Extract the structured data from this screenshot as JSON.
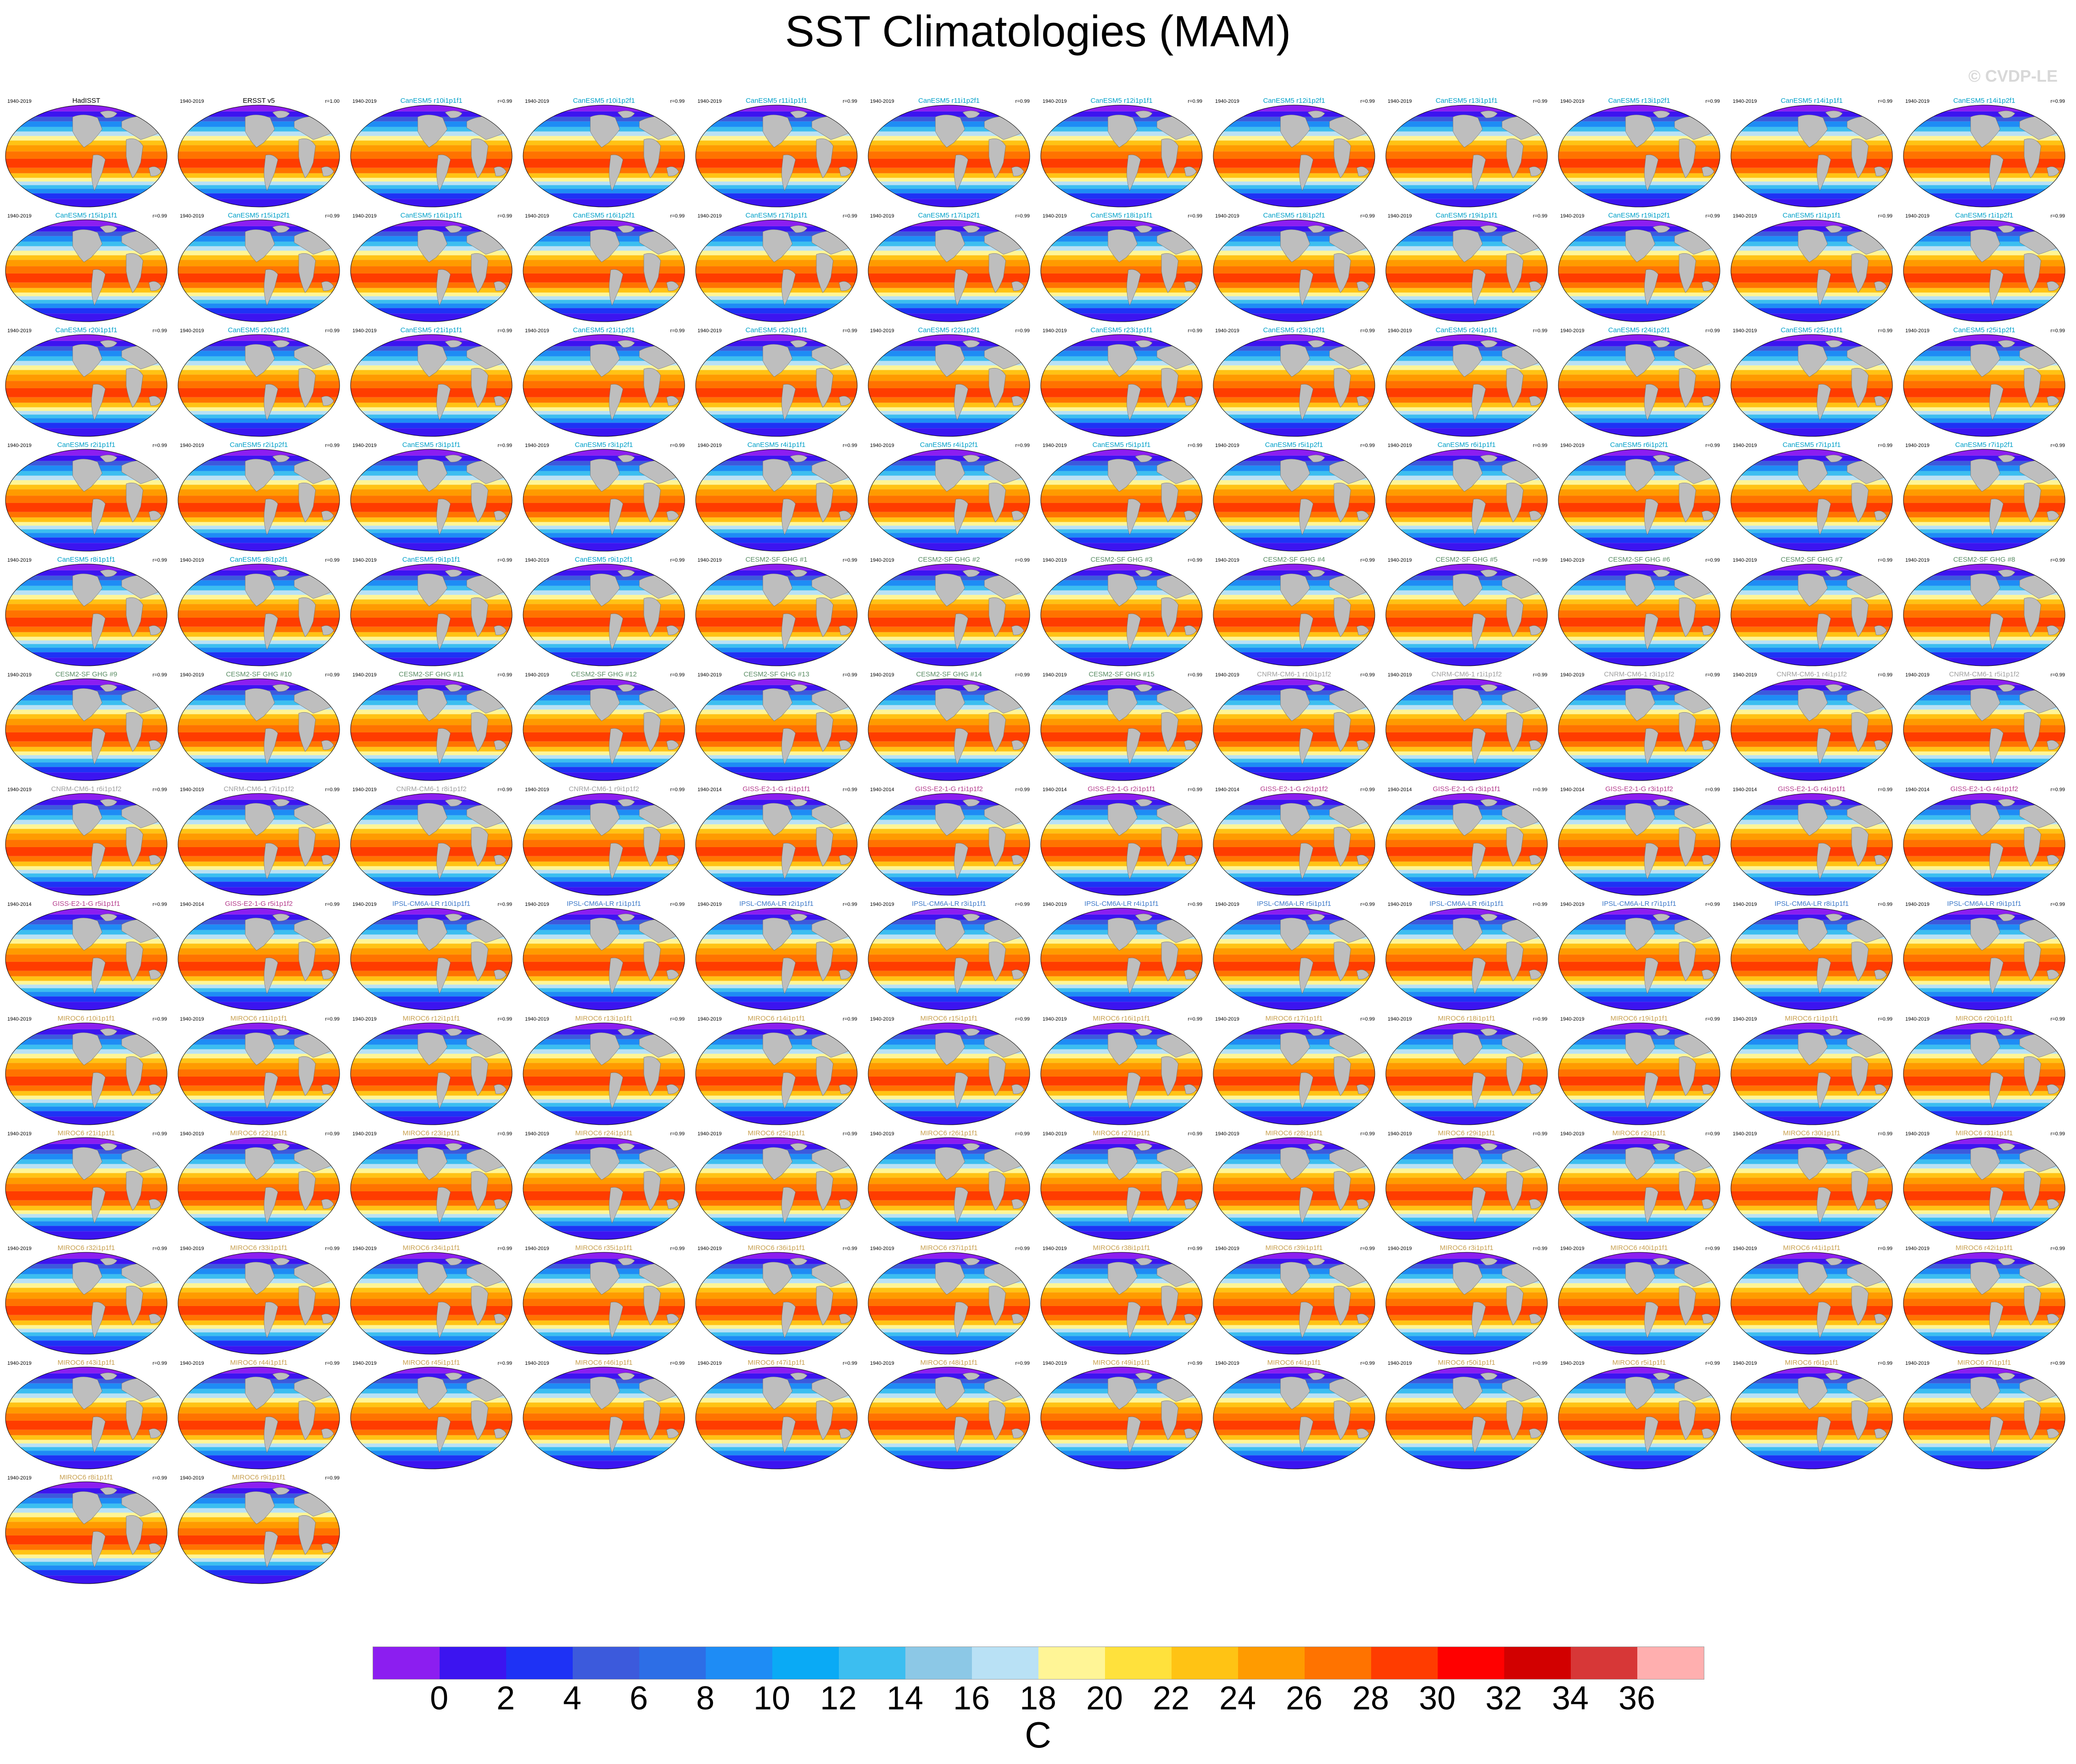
{
  "title": "SST Climatologies (MAM)",
  "copyright": "© CVDP-LE",
  "colorbar": {
    "units": "C",
    "ticks": [
      "0",
      "2",
      "4",
      "6",
      "8",
      "10",
      "12",
      "14",
      "16",
      "18",
      "20",
      "22",
      "24",
      "26",
      "28",
      "30",
      "32",
      "34",
      "36"
    ],
    "colors": [
      "#8c1ef0",
      "#3c14f0",
      "#1e32f5",
      "#3c5adc",
      "#2d6ee6",
      "#1e8cf5",
      "#0aaaf5",
      "#3cbef0",
      "#8cc8e6",
      "#b9e1f5",
      "#fff596",
      "#ffe13c",
      "#ffc314",
      "#ff9b00",
      "#ff7300",
      "#ff3c00",
      "#ff0000",
      "#d20000",
      "#d73737",
      "#ffafaf"
    ]
  },
  "panels": [
    {
      "name": "HadISST",
      "color": "#000000",
      "period": "1940-2019",
      "r": ""
    },
    {
      "name": "ERSST v5",
      "color": "#000000",
      "period": "1940-2019",
      "r": "r=1.00"
    },
    {
      "name": "CanESM5 r10i1p1f1",
      "color": "#00a0c8",
      "period": "1940-2019",
      "r": "r=0.99"
    },
    {
      "name": "CanESM5 r10i1p2f1",
      "color": "#00a0c8",
      "period": "1940-2019",
      "r": "r=0.99"
    },
    {
      "name": "CanESM5 r11i1p1f1",
      "color": "#00a0c8",
      "period": "1940-2019",
      "r": "r=0.99"
    },
    {
      "name": "CanESM5 r11i1p2f1",
      "color": "#00a0c8",
      "period": "1940-2019",
      "r": "r=0.99"
    },
    {
      "name": "CanESM5 r12i1p1f1",
      "color": "#00a0c8",
      "period": "1940-2019",
      "r": "r=0.99"
    },
    {
      "name": "CanESM5 r12i1p2f1",
      "color": "#00a0c8",
      "period": "1940-2019",
      "r": "r=0.99"
    },
    {
      "name": "CanESM5 r13i1p1f1",
      "color": "#00a0c8",
      "period": "1940-2019",
      "r": "r=0.99"
    },
    {
      "name": "CanESM5 r13i1p2f1",
      "color": "#00a0c8",
      "period": "1940-2019",
      "r": "r=0.99"
    },
    {
      "name": "CanESM5 r14i1p1f1",
      "color": "#00a0c8",
      "period": "1940-2019",
      "r": "r=0.99"
    },
    {
      "name": "CanESM5 r14i1p2f1",
      "color": "#00a0c8",
      "period": "1940-2019",
      "r": "r=0.99"
    },
    {
      "name": "CanESM5 r15i1p1f1",
      "color": "#00a0c8",
      "period": "1940-2019",
      "r": "r=0.99"
    },
    {
      "name": "CanESM5 r15i1p2f1",
      "color": "#00a0c8",
      "period": "1940-2019",
      "r": "r=0.99"
    },
    {
      "name": "CanESM5 r16i1p1f1",
      "color": "#00a0c8",
      "period": "1940-2019",
      "r": "r=0.99"
    },
    {
      "name": "CanESM5 r16i1p2f1",
      "color": "#00a0c8",
      "period": "1940-2019",
      "r": "r=0.99"
    },
    {
      "name": "CanESM5 r17i1p1f1",
      "color": "#00a0c8",
      "period": "1940-2019",
      "r": "r=0.99"
    },
    {
      "name": "CanESM5 r17i1p2f1",
      "color": "#00a0c8",
      "period": "1940-2019",
      "r": "r=0.99"
    },
    {
      "name": "CanESM5 r18i1p1f1",
      "color": "#00a0c8",
      "period": "1940-2019",
      "r": "r=0.99"
    },
    {
      "name": "CanESM5 r18i1p2f1",
      "color": "#00a0c8",
      "period": "1940-2019",
      "r": "r=0.99"
    },
    {
      "name": "CanESM5 r19i1p1f1",
      "color": "#00a0c8",
      "period": "1940-2019",
      "r": "r=0.99"
    },
    {
      "name": "CanESM5 r19i1p2f1",
      "color": "#00a0c8",
      "period": "1940-2019",
      "r": "r=0.99"
    },
    {
      "name": "CanESM5 r1i1p1f1",
      "color": "#00a0c8",
      "period": "1940-2019",
      "r": "r=0.99"
    },
    {
      "name": "CanESM5 r1i1p2f1",
      "color": "#00a0c8",
      "period": "1940-2019",
      "r": "r=0.99"
    },
    {
      "name": "CanESM5 r20i1p1f1",
      "color": "#00a0c8",
      "period": "1940-2019",
      "r": "r=0.99"
    },
    {
      "name": "CanESM5 r20i1p2f1",
      "color": "#00a0c8",
      "period": "1940-2019",
      "r": "r=0.99"
    },
    {
      "name": "CanESM5 r21i1p1f1",
      "color": "#00a0c8",
      "period": "1940-2019",
      "r": "r=0.99"
    },
    {
      "name": "CanESM5 r21i1p2f1",
      "color": "#00a0c8",
      "period": "1940-2019",
      "r": "r=0.99"
    },
    {
      "name": "CanESM5 r22i1p1f1",
      "color": "#00a0c8",
      "period": "1940-2019",
      "r": "r=0.99"
    },
    {
      "name": "CanESM5 r22i1p2f1",
      "color": "#00a0c8",
      "period": "1940-2019",
      "r": "r=0.99"
    },
    {
      "name": "CanESM5 r23i1p1f1",
      "color": "#00a0c8",
      "period": "1940-2019",
      "r": "r=0.99"
    },
    {
      "name": "CanESM5 r23i1p2f1",
      "color": "#00a0c8",
      "period": "1940-2019",
      "r": "r=0.99"
    },
    {
      "name": "CanESM5 r24i1p1f1",
      "color": "#00a0c8",
      "period": "1940-2019",
      "r": "r=0.99"
    },
    {
      "name": "CanESM5 r24i1p2f1",
      "color": "#00a0c8",
      "period": "1940-2019",
      "r": "r=0.99"
    },
    {
      "name": "CanESM5 r25i1p1f1",
      "color": "#00a0c8",
      "period": "1940-2019",
      "r": "r=0.99"
    },
    {
      "name": "CanESM5 r25i1p2f1",
      "color": "#00a0c8",
      "period": "1940-2019",
      "r": "r=0.99"
    },
    {
      "name": "CanESM5 r2i1p1f1",
      "color": "#00a0c8",
      "period": "1940-2019",
      "r": "r=0.99"
    },
    {
      "name": "CanESM5 r2i1p2f1",
      "color": "#00a0c8",
      "period": "1940-2019",
      "r": "r=0.99"
    },
    {
      "name": "CanESM5 r3i1p1f1",
      "color": "#00a0c8",
      "period": "1940-2019",
      "r": "r=0.99"
    },
    {
      "name": "CanESM5 r3i1p2f1",
      "color": "#00a0c8",
      "period": "1940-2019",
      "r": "r=0.99"
    },
    {
      "name": "CanESM5 r4i1p1f1",
      "color": "#00a0c8",
      "period": "1940-2019",
      "r": "r=0.99"
    },
    {
      "name": "CanESM5 r4i1p2f1",
      "color": "#00a0c8",
      "period": "1940-2019",
      "r": "r=0.99"
    },
    {
      "name": "CanESM5 r5i1p1f1",
      "color": "#00a0c8",
      "period": "1940-2019",
      "r": "r=0.99"
    },
    {
      "name": "CanESM5 r5i1p2f1",
      "color": "#00a0c8",
      "period": "1940-2019",
      "r": "r=0.99"
    },
    {
      "name": "CanESM5 r6i1p1f1",
      "color": "#00a0c8",
      "period": "1940-2019",
      "r": "r=0.99"
    },
    {
      "name": "CanESM5 r6i1p2f1",
      "color": "#00a0c8",
      "period": "1940-2019",
      "r": "r=0.99"
    },
    {
      "name": "CanESM5 r7i1p1f1",
      "color": "#00a0c8",
      "period": "1940-2019",
      "r": "r=0.99"
    },
    {
      "name": "CanESM5 r7i1p2f1",
      "color": "#00a0c8",
      "period": "1940-2019",
      "r": "r=0.99"
    },
    {
      "name": "CanESM5 r8i1p1f1",
      "color": "#00a0c8",
      "period": "1940-2019",
      "r": "r=0.99"
    },
    {
      "name": "CanESM5 r8i1p2f1",
      "color": "#00a0c8",
      "period": "1940-2019",
      "r": "r=0.99"
    },
    {
      "name": "CanESM5 r9i1p1f1",
      "color": "#00a0c8",
      "period": "1940-2019",
      "r": "r=0.99"
    },
    {
      "name": "CanESM5 r9i1p2f1",
      "color": "#00a0c8",
      "period": "1940-2019",
      "r": "r=0.99"
    },
    {
      "name": "CESM2-SF GHG #1",
      "color": "#5a8c64",
      "period": "1940-2019",
      "r": "r=0.99"
    },
    {
      "name": "CESM2-SF GHG #2",
      "color": "#5a8c64",
      "period": "1940-2019",
      "r": "r=0.99"
    },
    {
      "name": "CESM2-SF GHG #3",
      "color": "#5a8c64",
      "period": "1940-2019",
      "r": "r=0.99"
    },
    {
      "name": "CESM2-SF GHG #4",
      "color": "#5a8c64",
      "period": "1940-2019",
      "r": "r=0.99"
    },
    {
      "name": "CESM2-SF GHG #5",
      "color": "#5a8c64",
      "period": "1940-2019",
      "r": "r=0.99"
    },
    {
      "name": "CESM2-SF GHG #6",
      "color": "#5a8c64",
      "period": "1940-2019",
      "r": "r=0.99"
    },
    {
      "name": "CESM2-SF GHG #7",
      "color": "#5a8c64",
      "period": "1940-2019",
      "r": "r=0.99"
    },
    {
      "name": "CESM2-SF GHG #8",
      "color": "#5a8c64",
      "period": "1940-2019",
      "r": "r=0.99"
    },
    {
      "name": "CESM2-SF GHG #9",
      "color": "#5a8c64",
      "period": "1940-2019",
      "r": "r=0.99"
    },
    {
      "name": "CESM2-SF GHG #10",
      "color": "#5a8c64",
      "period": "1940-2019",
      "r": "r=0.99"
    },
    {
      "name": "CESM2-SF GHG #11",
      "color": "#5a8c64",
      "period": "1940-2019",
      "r": "r=0.99"
    },
    {
      "name": "CESM2-SF GHG #12",
      "color": "#5a8c64",
      "period": "1940-2019",
      "r": "r=0.99"
    },
    {
      "name": "CESM2-SF GHG #13",
      "color": "#5a8c64",
      "period": "1940-2019",
      "r": "r=0.99"
    },
    {
      "name": "CESM2-SF GHG #14",
      "color": "#5a8c64",
      "period": "1940-2019",
      "r": "r=0.99"
    },
    {
      "name": "CESM2-SF GHG #15",
      "color": "#5a8c64",
      "period": "1940-2019",
      "r": "r=0.99"
    },
    {
      "name": "CNRM-CM6-1 r10i1p1f2",
      "color": "#a0a0a0",
      "period": "1940-2019",
      "r": "r=0.99"
    },
    {
      "name": "CNRM-CM6-1 r1i1p1f2",
      "color": "#a0a0a0",
      "period": "1940-2019",
      "r": "r=0.99"
    },
    {
      "name": "CNRM-CM6-1 r3i1p1f2",
      "color": "#a0a0a0",
      "period": "1940-2019",
      "r": "r=0.99"
    },
    {
      "name": "CNRM-CM6-1 r4i1p1f2",
      "color": "#a0a0a0",
      "period": "1940-2019",
      "r": "r=0.99"
    },
    {
      "name": "CNRM-CM6-1 r5i1p1f2",
      "color": "#a0a0a0",
      "period": "1940-2019",
      "r": "r=0.99"
    },
    {
      "name": "CNRM-CM6-1 r6i1p1f2",
      "color": "#a0a0a0",
      "period": "1940-2019",
      "r": "r=0.99"
    },
    {
      "name": "CNRM-CM6-1 r7i1p1f2",
      "color": "#a0a0a0",
      "period": "1940-2019",
      "r": "r=0.99"
    },
    {
      "name": "CNRM-CM6-1 r8i1p1f2",
      "color": "#a0a0a0",
      "period": "1940-2019",
      "r": "r=0.99"
    },
    {
      "name": "CNRM-CM6-1 r9i1p1f2",
      "color": "#a0a0a0",
      "period": "1940-2019",
      "r": "r=0.99"
    },
    {
      "name": "GISS-E2-1-G r1i1p1f1",
      "color": "#b43c8c",
      "period": "1940-2014",
      "r": "r=0.99"
    },
    {
      "name": "GISS-E2-1-G r1i1p1f2",
      "color": "#b43c8c",
      "period": "1940-2014",
      "r": "r=0.99"
    },
    {
      "name": "GISS-E2-1-G r2i1p1f1",
      "color": "#b43c8c",
      "period": "1940-2014",
      "r": "r=0.99"
    },
    {
      "name": "GISS-E2-1-G r2i1p1f2",
      "color": "#b43c8c",
      "period": "1940-2014",
      "r": "r=0.99"
    },
    {
      "name": "GISS-E2-1-G r3i1p1f1",
      "color": "#b43c8c",
      "period": "1940-2014",
      "r": "r=0.99"
    },
    {
      "name": "GISS-E2-1-G r3i1p1f2",
      "color": "#b43c8c",
      "period": "1940-2014",
      "r": "r=0.99"
    },
    {
      "name": "GISS-E2-1-G r4i1p1f1",
      "color": "#b43c8c",
      "period": "1940-2014",
      "r": "r=0.99"
    },
    {
      "name": "GISS-E2-1-G r4i1p1f2",
      "color": "#b43c8c",
      "period": "1940-2014",
      "r": "r=0.99"
    },
    {
      "name": "GISS-E2-1-G r5i1p1f1",
      "color": "#b43c8c",
      "period": "1940-2014",
      "r": "r=0.99"
    },
    {
      "name": "GISS-E2-1-G r5i1p1f2",
      "color": "#b43c8c",
      "period": "1940-2014",
      "r": "r=0.99"
    },
    {
      "name": "IPSL-CM6A-LR r10i1p1f1",
      "color": "#3c78c8",
      "period": "1940-2019",
      "r": "r=0.99"
    },
    {
      "name": "IPSL-CM6A-LR r1i1p1f1",
      "color": "#3c78c8",
      "period": "1940-2019",
      "r": "r=0.99"
    },
    {
      "name": "IPSL-CM6A-LR r2i1p1f1",
      "color": "#3c78c8",
      "period": "1940-2019",
      "r": "r=0.99"
    },
    {
      "name": "IPSL-CM6A-LR r3i1p1f1",
      "color": "#3c78c8",
      "period": "1940-2019",
      "r": "r=0.99"
    },
    {
      "name": "IPSL-CM6A-LR r4i1p1f1",
      "color": "#3c78c8",
      "period": "1940-2019",
      "r": "r=0.99"
    },
    {
      "name": "IPSL-CM6A-LR r5i1p1f1",
      "color": "#3c78c8",
      "period": "1940-2019",
      "r": "r=0.99"
    },
    {
      "name": "IPSL-CM6A-LR r6i1p1f1",
      "color": "#3c78c8",
      "period": "1940-2019",
      "r": "r=0.99"
    },
    {
      "name": "IPSL-CM6A-LR r7i1p1f1",
      "color": "#3c78c8",
      "period": "1940-2019",
      "r": "r=0.99"
    },
    {
      "name": "IPSL-CM6A-LR r8i1p1f1",
      "color": "#3c78c8",
      "period": "1940-2019",
      "r": "r=0.99"
    },
    {
      "name": "IPSL-CM6A-LR r9i1p1f1",
      "color": "#3c78c8",
      "period": "1940-2019",
      "r": "r=0.99"
    },
    {
      "name": "MIROC6 r10i1p1f1",
      "color": "#c8a050",
      "period": "1940-2019",
      "r": "r=0.99"
    },
    {
      "name": "MIROC6 r11i1p1f1",
      "color": "#c8a050",
      "period": "1940-2019",
      "r": "r=0.99"
    },
    {
      "name": "MIROC6 r12i1p1f1",
      "color": "#c8a050",
      "period": "1940-2019",
      "r": "r=0.99"
    },
    {
      "name": "MIROC6 r13i1p1f1",
      "color": "#c8a050",
      "period": "1940-2019",
      "r": "r=0.99"
    },
    {
      "name": "MIROC6 r14i1p1f1",
      "color": "#c8a050",
      "period": "1940-2019",
      "r": "r=0.99"
    },
    {
      "name": "MIROC6 r15i1p1f1",
      "color": "#c8a050",
      "period": "1940-2019",
      "r": "r=0.99"
    },
    {
      "name": "MIROC6 r16i1p1f1",
      "color": "#c8a050",
      "period": "1940-2019",
      "r": "r=0.99"
    },
    {
      "name": "MIROC6 r17i1p1f1",
      "color": "#c8a050",
      "period": "1940-2019",
      "r": "r=0.99"
    },
    {
      "name": "MIROC6 r18i1p1f1",
      "color": "#c8a050",
      "period": "1940-2019",
      "r": "r=0.99"
    },
    {
      "name": "MIROC6 r19i1p1f1",
      "color": "#c8a050",
      "period": "1940-2019",
      "r": "r=0.99"
    },
    {
      "name": "MIROC6 r1i1p1f1",
      "color": "#c8a050",
      "period": "1940-2019",
      "r": "r=0.99"
    },
    {
      "name": "MIROC6 r20i1p1f1",
      "color": "#c8a050",
      "period": "1940-2019",
      "r": "r=0.99"
    },
    {
      "name": "MIROC6 r21i1p1f1",
      "color": "#c8a050",
      "period": "1940-2019",
      "r": "r=0.99"
    },
    {
      "name": "MIROC6 r22i1p1f1",
      "color": "#c8a050",
      "period": "1940-2019",
      "r": "r=0.99"
    },
    {
      "name": "MIROC6 r23i1p1f1",
      "color": "#c8a050",
      "period": "1940-2019",
      "r": "r=0.99"
    },
    {
      "name": "MIROC6 r24i1p1f1",
      "color": "#c8a050",
      "period": "1940-2019",
      "r": "r=0.99"
    },
    {
      "name": "MIROC6 r25i1p1f1",
      "color": "#c8a050",
      "period": "1940-2019",
      "r": "r=0.99"
    },
    {
      "name": "MIROC6 r26i1p1f1",
      "color": "#c8a050",
      "period": "1940-2019",
      "r": "r=0.99"
    },
    {
      "name": "MIROC6 r27i1p1f1",
      "color": "#c8a050",
      "period": "1940-2019",
      "r": "r=0.99"
    },
    {
      "name": "MIROC6 r28i1p1f1",
      "color": "#c8a050",
      "period": "1940-2019",
      "r": "r=0.99"
    },
    {
      "name": "MIROC6 r29i1p1f1",
      "color": "#c8a050",
      "period": "1940-2019",
      "r": "r=0.99"
    },
    {
      "name": "MIROC6 r2i1p1f1",
      "color": "#c8a050",
      "period": "1940-2019",
      "r": "r=0.99"
    },
    {
      "name": "MIROC6 r30i1p1f1",
      "color": "#c8a050",
      "period": "1940-2019",
      "r": "r=0.99"
    },
    {
      "name": "MIROC6 r31i1p1f1",
      "color": "#c8a050",
      "period": "1940-2019",
      "r": "r=0.99"
    },
    {
      "name": "MIROC6 r32i1p1f1",
      "color": "#c8a050",
      "period": "1940-2019",
      "r": "r=0.99"
    },
    {
      "name": "MIROC6 r33i1p1f1",
      "color": "#c8a050",
      "period": "1940-2019",
      "r": "r=0.99"
    },
    {
      "name": "MIROC6 r34i1p1f1",
      "color": "#c8a050",
      "period": "1940-2019",
      "r": "r=0.99"
    },
    {
      "name": "MIROC6 r35i1p1f1",
      "color": "#c8a050",
      "period": "1940-2019",
      "r": "r=0.99"
    },
    {
      "name": "MIROC6 r36i1p1f1",
      "color": "#c8a050",
      "period": "1940-2019",
      "r": "r=0.99"
    },
    {
      "name": "MIROC6 r37i1p1f1",
      "color": "#c8a050",
      "period": "1940-2019",
      "r": "r=0.99"
    },
    {
      "name": "MIROC6 r38i1p1f1",
      "color": "#c8a050",
      "period": "1940-2019",
      "r": "r=0.99"
    },
    {
      "name": "MIROC6 r39i1p1f1",
      "color": "#c8a050",
      "period": "1940-2019",
      "r": "r=0.99"
    },
    {
      "name": "MIROC6 r3i1p1f1",
      "color": "#c8a050",
      "period": "1940-2019",
      "r": "r=0.99"
    },
    {
      "name": "MIROC6 r40i1p1f1",
      "color": "#c8a050",
      "period": "1940-2019",
      "r": "r=0.99"
    },
    {
      "name": "MIROC6 r41i1p1f1",
      "color": "#c8a050",
      "period": "1940-2019",
      "r": "r=0.99"
    },
    {
      "name": "MIROC6 r42i1p1f1",
      "color": "#c8a050",
      "period": "1940-2019",
      "r": "r=0.99"
    },
    {
      "name": "MIROC6 r43i1p1f1",
      "color": "#c8a050",
      "period": "1940-2019",
      "r": "r=0.99"
    },
    {
      "name": "MIROC6 r44i1p1f1",
      "color": "#c8a050",
      "period": "1940-2019",
      "r": "r=0.99"
    },
    {
      "name": "MIROC6 r45i1p1f1",
      "color": "#c8a050",
      "period": "1940-2019",
      "r": "r=0.99"
    },
    {
      "name": "MIROC6 r46i1p1f1",
      "color": "#c8a050",
      "period": "1940-2019",
      "r": "r=0.99"
    },
    {
      "name": "MIROC6 r47i1p1f1",
      "color": "#c8a050",
      "period": "1940-2019",
      "r": "r=0.99"
    },
    {
      "name": "MIROC6 r48i1p1f1",
      "color": "#c8a050",
      "period": "1940-2019",
      "r": "r=0.99"
    },
    {
      "name": "MIROC6 r49i1p1f1",
      "color": "#c8a050",
      "period": "1940-2019",
      "r": "r=0.99"
    },
    {
      "name": "MIROC6 r4i1p1f1",
      "color": "#c8a050",
      "period": "1940-2019",
      "r": "r=0.99"
    },
    {
      "name": "MIROC6 r50i1p1f1",
      "color": "#c8a050",
      "period": "1940-2019",
      "r": "r=0.99"
    },
    {
      "name": "MIROC6 r5i1p1f1",
      "color": "#c8a050",
      "period": "1940-2019",
      "r": "r=0.99"
    },
    {
      "name": "MIROC6 r6i1p1f1",
      "color": "#c8a050",
      "period": "1940-2019",
      "r": "r=0.99"
    },
    {
      "name": "MIROC6 r7i1p1f1",
      "color": "#c8a050",
      "period": "1940-2019",
      "r": "r=0.99"
    },
    {
      "name": "MIROC6 r8i1p1f1",
      "color": "#c8a050",
      "period": "1940-2019",
      "r": "r=0.99"
    },
    {
      "name": "MIROC6 r9i1p1f1",
      "color": "#c8a050",
      "period": "1940-2019",
      "r": "r=0.99"
    }
  ]
}
